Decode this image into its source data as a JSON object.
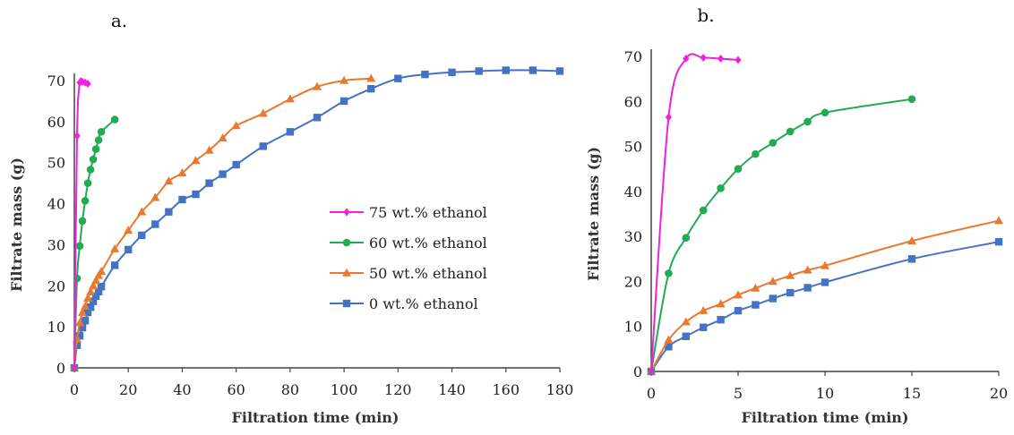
{
  "chart_data": [
    {
      "type": "line",
      "panel_label": "a.",
      "xlabel": "Filtration time (min)",
      "ylabel": "Filtrate mass (g)",
      "xlim": [
        0,
        180
      ],
      "ylim": [
        0,
        70
      ],
      "xticks": [
        0,
        20,
        40,
        60,
        80,
        100,
        120,
        140,
        160,
        180
      ],
      "yticks": [
        0,
        10,
        20,
        30,
        40,
        50,
        60,
        70
      ],
      "grid": false,
      "legend_position": "center-right",
      "series": [
        {
          "name": "75 wt.% ethanol",
          "color": "#ee22dd",
          "marker": "diamond",
          "x": [
            0,
            1,
            2,
            3,
            4,
            5
          ],
          "y": [
            0,
            56.5,
            69.5,
            69.7,
            69.5,
            69.2
          ]
        },
        {
          "name": "60 wt.% ethanol",
          "color": "#22aa55",
          "marker": "circle",
          "x": [
            0,
            1,
            2,
            3,
            4,
            5,
            6,
            7,
            8,
            9,
            10,
            15
          ],
          "y": [
            0,
            21.8,
            29.7,
            35.8,
            40.7,
            45,
            48.3,
            50.8,
            53.3,
            55.5,
            57.5,
            60.5
          ]
        },
        {
          "name": "50 wt.% ethanol",
          "color": "#e8792e",
          "marker": "triangle",
          "x": [
            0,
            1,
            2,
            3,
            4,
            5,
            6,
            7,
            8,
            9,
            10,
            15,
            20,
            25,
            30,
            35,
            40,
            45,
            50,
            55,
            60,
            70,
            80,
            90,
            100,
            110
          ],
          "y": [
            0,
            7,
            11,
            13.5,
            15,
            17,
            18.5,
            20,
            21.3,
            22.5,
            23.5,
            29,
            33.5,
            38,
            41.5,
            45.5,
            47.5,
            50.5,
            53,
            56,
            59,
            62,
            65.5,
            68.5,
            70,
            70.5
          ]
        },
        {
          "name": "0 wt.% ethanol",
          "color": "#4472c4",
          "marker": "square",
          "x": [
            0,
            1,
            2,
            3,
            4,
            5,
            6,
            7,
            8,
            9,
            10,
            15,
            20,
            25,
            30,
            35,
            40,
            45,
            50,
            55,
            60,
            70,
            80,
            90,
            100,
            110,
            120,
            130,
            140,
            150,
            160,
            170,
            180
          ],
          "y": [
            0,
            5.5,
            7.8,
            9.8,
            11.5,
            13.5,
            14.8,
            16.2,
            17.5,
            18.6,
            19.8,
            25,
            28.8,
            32.3,
            35,
            38,
            41,
            42.3,
            45,
            47.2,
            49.5,
            54,
            57.5,
            61,
            65,
            68,
            70.5,
            71.5,
            72,
            72.3,
            72.5,
            72.5,
            72.3
          ]
        }
      ]
    },
    {
      "type": "line",
      "panel_label": "b.",
      "xlabel": "Filtration time (min)",
      "ylabel": "Filtrate mass (g)",
      "xlim": [
        0,
        20
      ],
      "ylim": [
        0,
        70
      ],
      "xticks": [
        0,
        5,
        10,
        15,
        20
      ],
      "yticks": [
        0,
        10,
        20,
        30,
        40,
        50,
        60,
        70
      ],
      "grid": false,
      "series": [
        {
          "name": "75 wt.% ethanol",
          "color": "#ee22dd",
          "marker": "diamond",
          "x": [
            0,
            1,
            2,
            3,
            4,
            5
          ],
          "y": [
            0,
            56.5,
            69.5,
            69.7,
            69.5,
            69.2
          ]
        },
        {
          "name": "60 wt.% ethanol",
          "color": "#22aa55",
          "marker": "circle",
          "x": [
            0,
            1,
            2,
            3,
            4,
            5,
            6,
            7,
            8,
            9,
            10,
            15
          ],
          "y": [
            0,
            21.8,
            29.7,
            35.8,
            40.7,
            45,
            48.3,
            50.8,
            53.3,
            55.5,
            57.5,
            60.5
          ]
        },
        {
          "name": "50 wt.% ethanol",
          "color": "#e8792e",
          "marker": "triangle",
          "x": [
            0,
            1,
            2,
            3,
            4,
            5,
            6,
            7,
            8,
            9,
            10,
            15,
            20
          ],
          "y": [
            0,
            7,
            11,
            13.5,
            15,
            17,
            18.5,
            20,
            21.3,
            22.5,
            23.5,
            29,
            33.5
          ]
        },
        {
          "name": "0 wt.% ethanol",
          "color": "#4472c4",
          "marker": "square",
          "x": [
            0,
            1,
            2,
            3,
            4,
            5,
            6,
            7,
            8,
            9,
            10,
            15,
            20
          ],
          "y": [
            0,
            5.5,
            7.8,
            9.8,
            11.5,
            13.5,
            14.8,
            16.2,
            17.5,
            18.6,
            19.8,
            25,
            28.8
          ]
        }
      ]
    }
  ]
}
